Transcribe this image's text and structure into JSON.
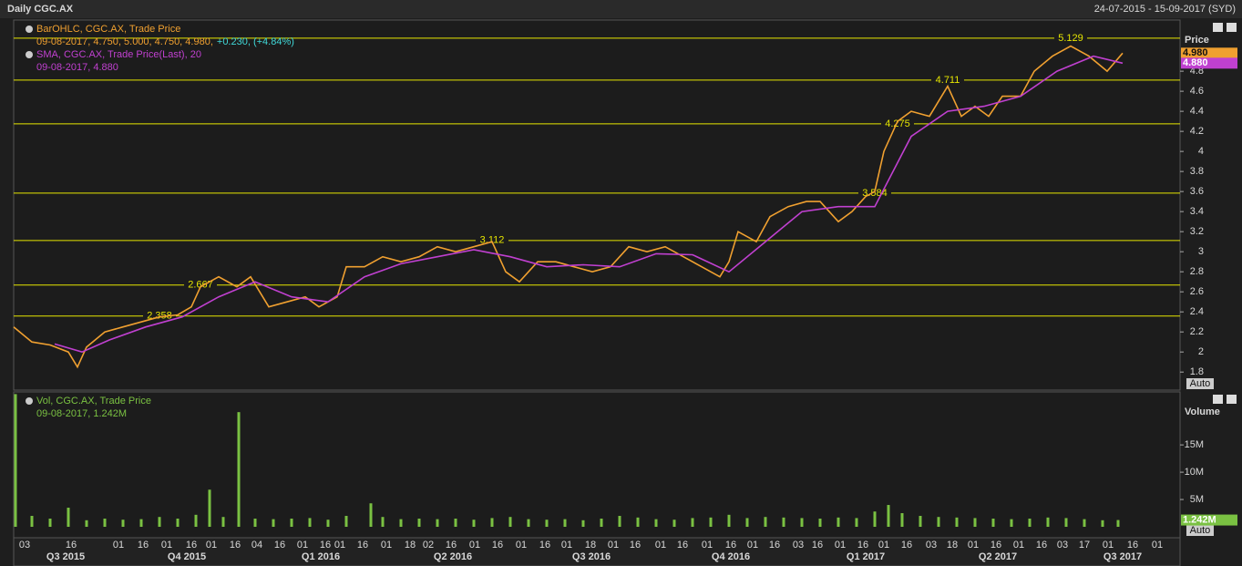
{
  "header": {
    "title": "Daily CGC.AX",
    "range": "24-07-2015 - 15-09-2017 (SYD)"
  },
  "controls": [
    "Auto",
    "Auto"
  ],
  "chart_data": [
    {
      "type": "line",
      "axis_title": "Price",
      "xlim": [
        15,
        1295
      ],
      "ylim": [
        1.62,
        5.31
      ],
      "yticks": [
        1.8,
        2,
        2.2,
        2.4,
        2.6,
        2.8,
        3,
        3.2,
        3.4,
        3.6,
        3.8,
        4,
        4.2,
        4.4,
        4.6,
        4.8
      ],
      "levels": [
        5.129,
        4.711,
        4.275,
        3.584,
        3.112,
        2.667,
        2.358
      ],
      "series": [
        {
          "name": "BarOHLC, CGC.AX, Trade Price",
          "color": "#f0a030",
          "detail": "09-08-2017, 4.750, 5.000, 4.750, 4.980,",
          "change": "+0.230, (+4.84%)",
          "last": {
            "value": 4.98,
            "label": "4.980"
          },
          "x": [
            15,
            35,
            55,
            75,
            85,
            95,
            115,
            135,
            155,
            175,
            195,
            210,
            220,
            240,
            260,
            275,
            295,
            315,
            335,
            350,
            370,
            380,
            400,
            420,
            440,
            460,
            480,
            500,
            520,
            540,
            555,
            570,
            590,
            610,
            630,
            650,
            670,
            690,
            710,
            730,
            750,
            770,
            790,
            800,
            810,
            830,
            845,
            865,
            885,
            900,
            920,
            935,
            950,
            960,
            970,
            985,
            1000,
            1020,
            1040,
            1055,
            1070,
            1085,
            1100,
            1120,
            1135,
            1155,
            1175,
            1195,
            1215,
            1232
          ],
          "values": [
            2.25,
            2.1,
            2.07,
            2.0,
            1.85,
            2.05,
            2.2,
            2.25,
            2.3,
            2.35,
            2.37,
            2.45,
            2.65,
            2.75,
            2.65,
            2.75,
            2.45,
            2.5,
            2.55,
            2.45,
            2.55,
            2.85,
            2.85,
            2.95,
            2.9,
            2.95,
            3.05,
            3.0,
            3.05,
            3.1,
            2.8,
            2.7,
            2.9,
            2.9,
            2.85,
            2.8,
            2.85,
            3.05,
            3.0,
            3.05,
            2.95,
            2.85,
            2.75,
            2.9,
            3.2,
            3.1,
            3.35,
            3.45,
            3.5,
            3.5,
            3.3,
            3.4,
            3.55,
            3.6,
            4.0,
            4.3,
            4.4,
            4.35,
            4.65,
            4.35,
            4.45,
            4.35,
            4.55,
            4.55,
            4.8,
            4.95,
            5.05,
            4.95,
            4.8,
            4.98
          ]
        },
        {
          "name": "SMA, CGC.AX, Trade Price(Last), 20",
          "color": "#c040d0",
          "detail": "09-08-2017, 4.880",
          "last": {
            "value": 4.88,
            "label": "4.880"
          },
          "x": [
            60,
            90,
            120,
            160,
            200,
            240,
            280,
            320,
            360,
            400,
            440,
            480,
            520,
            560,
            600,
            640,
            680,
            720,
            760,
            800,
            840,
            880,
            920,
            960,
            1000,
            1040,
            1080,
            1120,
            1160,
            1200,
            1232
          ],
          "values": [
            2.08,
            2.0,
            2.12,
            2.25,
            2.35,
            2.55,
            2.7,
            2.55,
            2.5,
            2.75,
            2.88,
            2.95,
            3.02,
            2.95,
            2.85,
            2.87,
            2.85,
            2.98,
            2.97,
            2.8,
            3.1,
            3.4,
            3.45,
            3.45,
            4.15,
            4.4,
            4.45,
            4.55,
            4.8,
            4.95,
            4.88
          ]
        }
      ]
    },
    {
      "type": "bar",
      "axis_title": "Volume",
      "xlim": [
        15,
        1295
      ],
      "ylim": [
        0,
        24700000
      ],
      "yticks": [
        {
          "value": 5000000,
          "label": "5M"
        },
        {
          "value": 10000000,
          "label": "10M"
        },
        {
          "value": 15000000,
          "label": "15M"
        }
      ],
      "xticks": [
        {
          "value": 27,
          "label": "03"
        },
        {
          "value": 78,
          "label": "16"
        },
        {
          "value": 130,
          "label": "01"
        },
        {
          "value": 157,
          "label": "16"
        },
        {
          "value": 183,
          "label": "01"
        },
        {
          "value": 210,
          "label": "16"
        },
        {
          "value": 232,
          "label": "01"
        },
        {
          "value": 258,
          "label": "16"
        },
        {
          "value": 282,
          "label": "04"
        },
        {
          "value": 307,
          "label": "16"
        },
        {
          "value": 332,
          "label": "01"
        },
        {
          "value": 357,
          "label": "16"
        },
        {
          "value": 373,
          "label": "01"
        },
        {
          "value": 398,
          "label": "16"
        },
        {
          "value": 424,
          "label": "01"
        },
        {
          "value": 450,
          "label": "18"
        },
        {
          "value": 470,
          "label": "02"
        },
        {
          "value": 495,
          "label": "16"
        },
        {
          "value": 521,
          "label": "01"
        },
        {
          "value": 546,
          "label": "16"
        },
        {
          "value": 572,
          "label": "01"
        },
        {
          "value": 598,
          "label": "16"
        },
        {
          "value": 622,
          "label": "01"
        },
        {
          "value": 648,
          "label": "18"
        },
        {
          "value": 673,
          "label": "01"
        },
        {
          "value": 697,
          "label": "16"
        },
        {
          "value": 725,
          "label": "01"
        },
        {
          "value": 749,
          "label": "16"
        },
        {
          "value": 776,
          "label": "01"
        },
        {
          "value": 802,
          "label": "16"
        },
        {
          "value": 826,
          "label": "01"
        },
        {
          "value": 850,
          "label": "16"
        },
        {
          "value": 876,
          "label": "03"
        },
        {
          "value": 897,
          "label": "16"
        },
        {
          "value": 922,
          "label": "01"
        },
        {
          "value": 947,
          "label": "16"
        },
        {
          "value": 970,
          "label": "01"
        },
        {
          "value": 995,
          "label": "16"
        },
        {
          "value": 1022,
          "label": "03"
        },
        {
          "value": 1045,
          "label": "18"
        },
        {
          "value": 1068,
          "label": "01"
        },
        {
          "value": 1093,
          "label": "16"
        },
        {
          "value": 1118,
          "label": "01"
        },
        {
          "value": 1143,
          "label": "16"
        },
        {
          "value": 1166,
          "label": "03"
        },
        {
          "value": 1190,
          "label": "17"
        },
        {
          "value": 1216,
          "label": "01"
        },
        {
          "value": 1243,
          "label": "16"
        },
        {
          "value": 1270,
          "label": "01"
        }
      ],
      "quarters": [
        {
          "value": 72,
          "label": "Q3 2015"
        },
        {
          "value": 205,
          "label": "Q4 2015"
        },
        {
          "value": 352,
          "label": "Q1 2016"
        },
        {
          "value": 497,
          "label": "Q2 2016"
        },
        {
          "value": 649,
          "label": "Q3 2016"
        },
        {
          "value": 802,
          "label": "Q4 2016"
        },
        {
          "value": 950,
          "label": "Q1 2017"
        },
        {
          "value": 1095,
          "label": "Q2 2017"
        },
        {
          "value": 1232,
          "label": "Q3 2017"
        }
      ],
      "series": [
        {
          "name": "Vol, CGC.AX, Trade Price",
          "color": "#7ac142",
          "detail": "09-08-2017, 1.242M",
          "last": {
            "value": 1242000,
            "label": "1.242M"
          },
          "x": [
            17,
            35,
            55,
            75,
            95,
            115,
            135,
            155,
            175,
            195,
            215,
            230,
            245,
            262,
            280,
            300,
            320,
            340,
            360,
            380,
            407,
            420,
            440,
            460,
            480,
            500,
            520,
            540,
            560,
            580,
            600,
            620,
            640,
            660,
            680,
            700,
            720,
            740,
            760,
            780,
            800,
            820,
            840,
            860,
            880,
            900,
            920,
            940,
            960,
            975,
            990,
            1010,
            1030,
            1050,
            1070,
            1090,
            1110,
            1130,
            1150,
            1170,
            1190,
            1210,
            1227
          ],
          "values": [
            24300000,
            2000000,
            1500000,
            3500000,
            1200000,
            1500000,
            1300000,
            1400000,
            1800000,
            1500000,
            2200000,
            6800000,
            1800000,
            21000000,
            1500000,
            1400000,
            1500000,
            1600000,
            1300000,
            2000000,
            4300000,
            1800000,
            1400000,
            1500000,
            1400000,
            1500000,
            1300000,
            1600000,
            1800000,
            1400000,
            1300000,
            1400000,
            1200000,
            1500000,
            2000000,
            1700000,
            1400000,
            1300000,
            1600000,
            1700000,
            2200000,
            1600000,
            1800000,
            1700000,
            1600000,
            1500000,
            1700000,
            1600000,
            2800000,
            4000000,
            2500000,
            2000000,
            1800000,
            1700000,
            1600000,
            1500000,
            1400000,
            1500000,
            1700000,
            1600000,
            1400000,
            1200000,
            1242000
          ]
        }
      ]
    }
  ]
}
